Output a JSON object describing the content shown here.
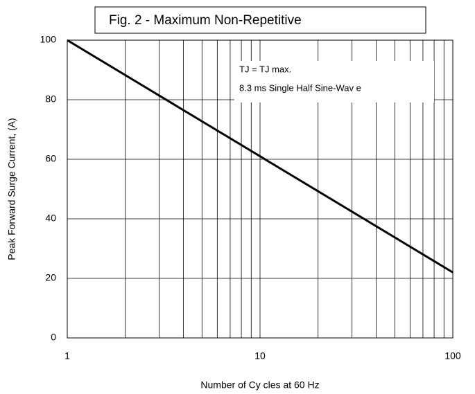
{
  "chart_data": {
    "type": "line",
    "title": "Fig. 2 - Maximum Non-Repetitive",
    "xlabel": "Number of Cy cles at 60 Hz",
    "ylabel": "Peak Forward Surge Current, (A)",
    "annotations": [
      "TJ = TJ max.",
      "8.3 ms Single Half Sine-Wav e"
    ],
    "x": [
      1,
      100
    ],
    "series": [
      {
        "color": "#000000",
        "values": [
          100,
          22
        ]
      }
    ],
    "xscale": "log",
    "xlim": [
      1,
      100
    ],
    "xticks": [
      1,
      10,
      100
    ],
    "xminor_ticks": [
      2,
      3,
      4,
      5,
      6,
      7,
      8,
      9,
      20,
      30,
      40,
      50,
      60,
      70,
      80,
      90
    ],
    "ylim": [
      0,
      100
    ],
    "yticks": [
      0,
      20,
      40,
      60,
      80,
      100
    ],
    "grid": true
  }
}
